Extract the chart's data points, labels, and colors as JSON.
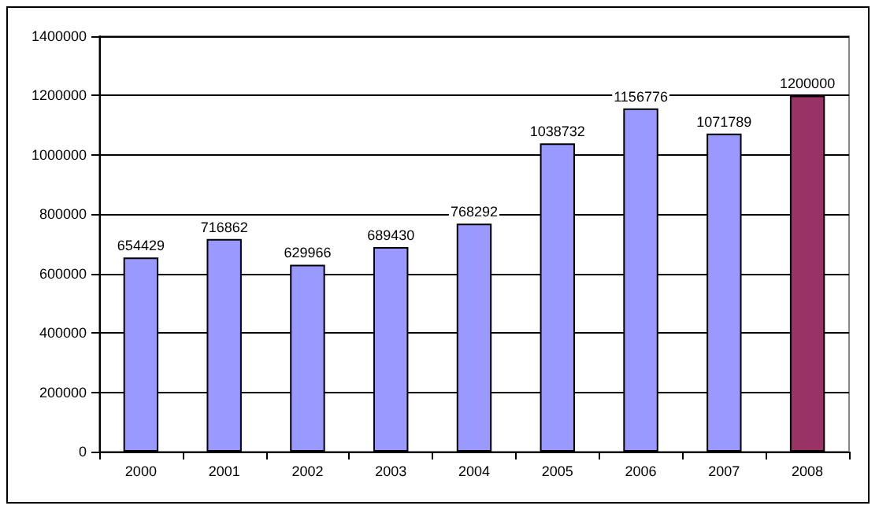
{
  "chart_data": {
    "type": "bar",
    "categories": [
      "2000",
      "2001",
      "2002",
      "2003",
      "2004",
      "2005",
      "2006",
      "2007",
      "2008"
    ],
    "values": [
      654429,
      716862,
      629966,
      689430,
      768292,
      1038732,
      1156776,
      1071789,
      1200000
    ],
    "colors": [
      "#9999ff",
      "#9999ff",
      "#9999ff",
      "#9999ff",
      "#9999ff",
      "#9999ff",
      "#9999ff",
      "#9999ff",
      "#993366"
    ],
    "ylim": [
      0,
      1400000
    ],
    "yticks": [
      0,
      200000,
      400000,
      600000,
      800000,
      1000000,
      1200000,
      1400000
    ],
    "grid": "y",
    "data_labels": true
  }
}
